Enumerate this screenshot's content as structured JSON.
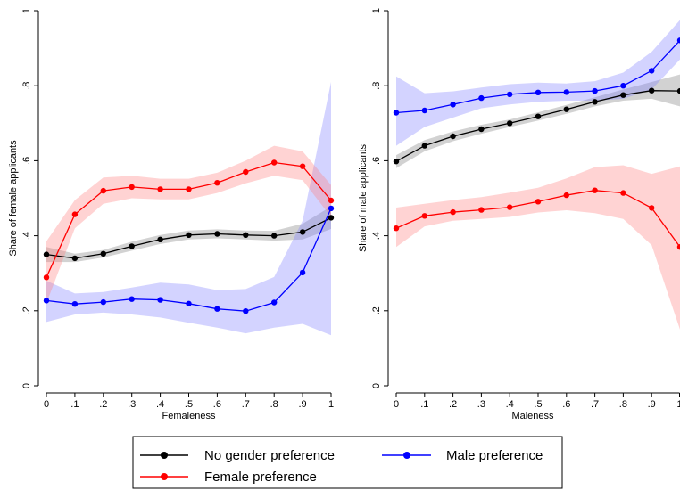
{
  "chart_data": [
    {
      "type": "line",
      "xlabel": "Femaleness",
      "ylabel": "Share of female applicants",
      "xlim": [
        0,
        1
      ],
      "ylim": [
        0,
        1
      ],
      "x": [
        0,
        0.1,
        0.2,
        0.3,
        0.4,
        0.5,
        0.6,
        0.7,
        0.8,
        0.9,
        1
      ],
      "xtick_labels": [
        "0",
        ".1",
        ".2",
        ".3",
        ".4",
        ".5",
        ".6",
        ".7",
        ".8",
        ".9",
        "1"
      ],
      "yticks": [
        0,
        0.2,
        0.4,
        0.6,
        0.8,
        1
      ],
      "ytick_labels": [
        "0",
        ".2",
        ".4",
        ".6",
        ".8",
        "1"
      ],
      "series": [
        {
          "name": "No gender preference",
          "color": "#000000",
          "band_color": "#7f7f7f",
          "values": [
            0.35,
            0.34,
            0.352,
            0.372,
            0.39,
            0.402,
            0.405,
            0.402,
            0.4,
            0.41,
            0.448
          ],
          "lower": [
            0.33,
            0.33,
            0.342,
            0.36,
            0.378,
            0.39,
            0.393,
            0.39,
            0.387,
            0.39,
            0.418
          ],
          "upper": [
            0.37,
            0.352,
            0.362,
            0.384,
            0.402,
            0.414,
            0.417,
            0.414,
            0.413,
            0.432,
            0.478
          ]
        },
        {
          "name": "Male preference",
          "color": "#0000ff",
          "band_color": "#8080ff",
          "values": [
            0.227,
            0.218,
            0.223,
            0.231,
            0.229,
            0.219,
            0.205,
            0.199,
            0.222,
            0.302,
            0.473
          ],
          "lower": [
            0.17,
            0.19,
            0.195,
            0.19,
            0.182,
            0.168,
            0.155,
            0.14,
            0.155,
            0.165,
            0.135
          ],
          "upper": [
            0.28,
            0.246,
            0.25,
            0.262,
            0.275,
            0.27,
            0.255,
            0.258,
            0.29,
            0.44,
            0.81
          ]
        },
        {
          "name": "Female preference",
          "color": "#ff0000",
          "band_color": "#ff8080",
          "values": [
            0.289,
            0.457,
            0.52,
            0.53,
            0.524,
            0.524,
            0.541,
            0.57,
            0.595,
            0.585,
            0.494
          ],
          "lower": [
            0.22,
            0.42,
            0.485,
            0.5,
            0.497,
            0.497,
            0.514,
            0.54,
            0.56,
            0.548,
            0.45
          ],
          "upper": [
            0.385,
            0.495,
            0.555,
            0.56,
            0.552,
            0.552,
            0.568,
            0.6,
            0.64,
            0.625,
            0.535
          ]
        }
      ]
    },
    {
      "type": "line",
      "xlabel": "Maleness",
      "ylabel": "Share of male applicants",
      "xlim": [
        0,
        1
      ],
      "ylim": [
        0,
        1
      ],
      "x": [
        0,
        0.1,
        0.2,
        0.3,
        0.4,
        0.5,
        0.6,
        0.7,
        0.8,
        0.9,
        1
      ],
      "xtick_labels": [
        "0",
        ".1",
        ".2",
        ".3",
        ".4",
        ".5",
        ".6",
        ".7",
        ".8",
        ".9",
        "1"
      ],
      "yticks": [
        0,
        0.2,
        0.4,
        0.6,
        0.8,
        1
      ],
      "ytick_labels": [
        "0",
        ".2",
        ".4",
        ".6",
        ".8",
        "1"
      ],
      "series": [
        {
          "name": "No gender preference",
          "color": "#000000",
          "band_color": "#7f7f7f",
          "values": [
            0.598,
            0.64,
            0.665,
            0.684,
            0.7,
            0.718,
            0.737,
            0.757,
            0.775,
            0.787,
            0.786
          ],
          "lower": [
            0.58,
            0.625,
            0.652,
            0.672,
            0.69,
            0.707,
            0.725,
            0.745,
            0.76,
            0.765,
            0.745
          ],
          "upper": [
            0.615,
            0.655,
            0.678,
            0.696,
            0.71,
            0.729,
            0.749,
            0.769,
            0.79,
            0.81,
            0.83
          ]
        },
        {
          "name": "Male preference",
          "color": "#0000ff",
          "band_color": "#8080ff",
          "values": [
            0.728,
            0.734,
            0.75,
            0.767,
            0.777,
            0.782,
            0.783,
            0.786,
            0.8,
            0.84,
            0.921
          ],
          "lower": [
            0.64,
            0.69,
            0.715,
            0.74,
            0.75,
            0.757,
            0.76,
            0.76,
            0.765,
            0.79,
            0.87
          ],
          "upper": [
            0.825,
            0.78,
            0.785,
            0.795,
            0.804,
            0.808,
            0.806,
            0.812,
            0.835,
            0.89,
            0.975
          ]
        },
        {
          "name": "Female preference",
          "color": "#ff0000",
          "band_color": "#ff8080",
          "values": [
            0.42,
            0.453,
            0.463,
            0.469,
            0.476,
            0.491,
            0.508,
            0.521,
            0.514,
            0.474,
            0.37
          ],
          "lower": [
            0.37,
            0.425,
            0.44,
            0.445,
            0.45,
            0.462,
            0.468,
            0.46,
            0.445,
            0.375,
            0.15
          ],
          "upper": [
            0.475,
            0.485,
            0.495,
            0.503,
            0.515,
            0.528,
            0.553,
            0.583,
            0.588,
            0.565,
            0.585
          ]
        }
      ]
    }
  ],
  "legend": {
    "position": "bottom",
    "items": [
      {
        "label": "No gender preference",
        "color": "#000000"
      },
      {
        "label": "Male preference",
        "color": "#0000ff"
      },
      {
        "label": "Female preference",
        "color": "#ff0000"
      }
    ]
  }
}
